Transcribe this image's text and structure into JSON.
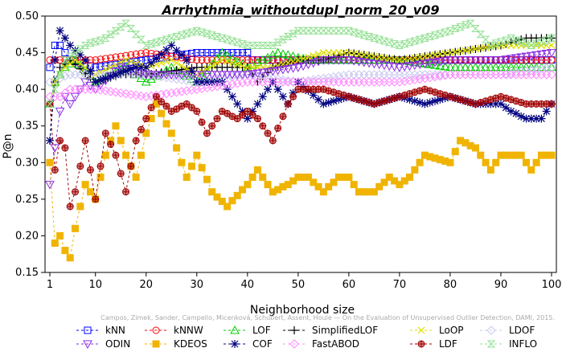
{
  "chart_data": {
    "type": "line",
    "title": "Arrhythmia_withoutdupl_norm_20_v09",
    "xlabel": "Neighborhood size",
    "ylabel": "P@n",
    "xlim": [
      1,
      100
    ],
    "ylim": [
      0.15,
      0.5
    ],
    "x_ticks": [
      1,
      10,
      20,
      30,
      40,
      50,
      60,
      70,
      80,
      90,
      100
    ],
    "y_ticks": [
      0.15,
      0.2,
      0.25,
      0.3,
      0.35,
      0.4,
      0.45,
      0.5
    ],
    "grid": false,
    "legend_placement": "bottom",
    "watermark": "Campos, Zimek, Sander, Campello, Micenková, Schubert, Assent, Houle — On the Evaluation of Unsupervised Outlier Detection, DAMI, 2015.",
    "series": [
      {
        "name": "kNN",
        "color": "#0000ff",
        "marker": "square",
        "keypoints": [
          [
            1,
            0.43
          ],
          [
            2,
            0.46
          ],
          [
            3,
            0.46
          ],
          [
            5,
            0.44
          ],
          [
            10,
            0.43
          ],
          [
            20,
            0.44
          ],
          [
            30,
            0.45
          ],
          [
            40,
            0.45
          ],
          [
            41,
            0.44
          ],
          [
            60,
            0.44
          ],
          [
            80,
            0.44
          ],
          [
            90,
            0.44
          ],
          [
            100,
            0.44
          ]
        ]
      },
      {
        "name": "kNNW",
        "color": "#ff0000",
        "marker": "circle",
        "keypoints": [
          [
            1,
            0.44
          ],
          [
            3,
            0.44
          ],
          [
            10,
            0.44
          ],
          [
            20,
            0.45
          ],
          [
            30,
            0.44
          ],
          [
            40,
            0.44
          ],
          [
            60,
            0.44
          ],
          [
            80,
            0.44
          ],
          [
            100,
            0.44
          ]
        ]
      },
      {
        "name": "LOF",
        "color": "#00cc00",
        "marker": "triangle-up",
        "keypoints": [
          [
            1,
            0.38
          ],
          [
            2,
            0.41
          ],
          [
            4,
            0.43
          ],
          [
            6,
            0.44
          ],
          [
            10,
            0.41
          ],
          [
            16,
            0.43
          ],
          [
            20,
            0.41
          ],
          [
            25,
            0.43
          ],
          [
            30,
            0.41
          ],
          [
            35,
            0.45
          ],
          [
            40,
            0.43
          ],
          [
            46,
            0.45
          ],
          [
            52,
            0.44
          ],
          [
            60,
            0.44
          ],
          [
            70,
            0.44
          ],
          [
            80,
            0.43
          ],
          [
            90,
            0.43
          ],
          [
            100,
            0.43
          ]
        ]
      },
      {
        "name": "SimplifiedLOF",
        "color": "#000000",
        "marker": "plus",
        "keypoints": [
          [
            1,
            0.33
          ],
          [
            2,
            0.41
          ],
          [
            3,
            0.43
          ],
          [
            5,
            0.44
          ],
          [
            10,
            0.41
          ],
          [
            15,
            0.42
          ],
          [
            20,
            0.42
          ],
          [
            30,
            0.43
          ],
          [
            40,
            0.43
          ],
          [
            42,
            0.41
          ],
          [
            45,
            0.43
          ],
          [
            50,
            0.44
          ],
          [
            55,
            0.44
          ],
          [
            60,
            0.45
          ],
          [
            70,
            0.44
          ],
          [
            80,
            0.45
          ],
          [
            90,
            0.46
          ],
          [
            95,
            0.47
          ],
          [
            100,
            0.47
          ]
        ]
      },
      {
        "name": "LoOP",
        "color": "#dddd00",
        "marker": "x",
        "keypoints": [
          [
            1,
            0.38
          ],
          [
            2,
            0.41
          ],
          [
            4,
            0.43
          ],
          [
            6,
            0.44
          ],
          [
            10,
            0.42
          ],
          [
            16,
            0.44
          ],
          [
            20,
            0.43
          ],
          [
            25,
            0.44
          ],
          [
            30,
            0.42
          ],
          [
            35,
            0.44
          ],
          [
            40,
            0.43
          ],
          [
            45,
            0.43
          ],
          [
            50,
            0.44
          ],
          [
            55,
            0.45
          ],
          [
            60,
            0.45
          ],
          [
            70,
            0.44
          ],
          [
            80,
            0.45
          ],
          [
            90,
            0.46
          ],
          [
            100,
            0.46
          ]
        ]
      },
      {
        "name": "LDOF",
        "color": "#c8c8f0",
        "marker": "diamond",
        "keypoints": [
          [
            1,
            0.41
          ],
          [
            5,
            0.42
          ],
          [
            10,
            0.42
          ],
          [
            20,
            0.42
          ],
          [
            30,
            0.41
          ],
          [
            40,
            0.42
          ],
          [
            50,
            0.41
          ],
          [
            60,
            0.42
          ],
          [
            70,
            0.42
          ],
          [
            80,
            0.42
          ],
          [
            90,
            0.42
          ],
          [
            100,
            0.43
          ]
        ]
      },
      {
        "name": "ODIN",
        "color": "#8a2be2",
        "marker": "triangle-down",
        "keypoints": [
          [
            1,
            0.27
          ],
          [
            2,
            0.32
          ],
          [
            3,
            0.37
          ],
          [
            4,
            0.39
          ],
          [
            5,
            0.38
          ],
          [
            8,
            0.41
          ],
          [
            10,
            0.4
          ],
          [
            15,
            0.43
          ],
          [
            20,
            0.42
          ],
          [
            30,
            0.42
          ],
          [
            40,
            0.42
          ],
          [
            50,
            0.43
          ],
          [
            55,
            0.44
          ],
          [
            60,
            0.44
          ],
          [
            70,
            0.43
          ],
          [
            80,
            0.44
          ],
          [
            90,
            0.44
          ],
          [
            100,
            0.45
          ]
        ]
      },
      {
        "name": "KDEOS",
        "color": "#f0b400",
        "marker": "square-filled",
        "keypoints": [
          [
            1,
            0.3
          ],
          [
            2,
            0.19
          ],
          [
            3,
            0.2
          ],
          [
            4,
            0.18
          ],
          [
            5,
            0.17
          ],
          [
            6,
            0.21
          ],
          [
            8,
            0.27
          ],
          [
            10,
            0.25
          ],
          [
            12,
            0.31
          ],
          [
            14,
            0.35
          ],
          [
            16,
            0.31
          ],
          [
            18,
            0.28
          ],
          [
            20,
            0.34
          ],
          [
            22,
            0.38
          ],
          [
            25,
            0.34
          ],
          [
            28,
            0.28
          ],
          [
            30,
            0.31
          ],
          [
            33,
            0.26
          ],
          [
            36,
            0.24
          ],
          [
            40,
            0.27
          ],
          [
            42,
            0.29
          ],
          [
            45,
            0.26
          ],
          [
            48,
            0.27
          ],
          [
            50,
            0.28
          ],
          [
            52,
            0.28
          ],
          [
            55,
            0.26
          ],
          [
            58,
            0.28
          ],
          [
            60,
            0.28
          ],
          [
            62,
            0.26
          ],
          [
            65,
            0.26
          ],
          [
            68,
            0.28
          ],
          [
            70,
            0.27
          ],
          [
            72,
            0.28
          ],
          [
            75,
            0.31
          ],
          [
            80,
            0.3
          ],
          [
            82,
            0.33
          ],
          [
            85,
            0.32
          ],
          [
            88,
            0.29
          ],
          [
            90,
            0.31
          ],
          [
            94,
            0.31
          ],
          [
            96,
            0.29
          ],
          [
            98,
            0.31
          ],
          [
            100,
            0.31
          ]
        ]
      },
      {
        "name": "COF",
        "color": "#000080",
        "marker": "asterisk",
        "keypoints": [
          [
            1,
            0.33
          ],
          [
            2,
            0.44
          ],
          [
            3,
            0.48
          ],
          [
            5,
            0.46
          ],
          [
            8,
            0.44
          ],
          [
            10,
            0.41
          ],
          [
            14,
            0.42
          ],
          [
            18,
            0.43
          ],
          [
            20,
            0.43
          ],
          [
            25,
            0.46
          ],
          [
            28,
            0.44
          ],
          [
            30,
            0.41
          ],
          [
            35,
            0.41
          ],
          [
            38,
            0.38
          ],
          [
            40,
            0.36
          ],
          [
            42,
            0.38
          ],
          [
            45,
            0.41
          ],
          [
            48,
            0.38
          ],
          [
            50,
            0.41
          ],
          [
            55,
            0.38
          ],
          [
            60,
            0.39
          ],
          [
            65,
            0.38
          ],
          [
            70,
            0.39
          ],
          [
            75,
            0.38
          ],
          [
            80,
            0.39
          ],
          [
            85,
            0.38
          ],
          [
            88,
            0.38
          ],
          [
            90,
            0.38
          ],
          [
            92,
            0.37
          ],
          [
            95,
            0.36
          ],
          [
            98,
            0.36
          ],
          [
            100,
            0.38
          ]
        ]
      },
      {
        "name": "FastABOD",
        "color": "#ff88ff",
        "marker": "diamond",
        "keypoints": [
          [
            1,
            0.39
          ],
          [
            3,
            0.39
          ],
          [
            5,
            0.4
          ],
          [
            10,
            0.4
          ],
          [
            20,
            0.39
          ],
          [
            30,
            0.4
          ],
          [
            40,
            0.41
          ],
          [
            50,
            0.41
          ],
          [
            60,
            0.41
          ],
          [
            70,
            0.41
          ],
          [
            80,
            0.42
          ],
          [
            90,
            0.42
          ],
          [
            100,
            0.42
          ]
        ]
      },
      {
        "name": "LDF",
        "color": "#a00000",
        "marker": "circle-plus",
        "keypoints": [
          [
            1,
            0.38
          ],
          [
            2,
            0.29
          ],
          [
            3,
            0.33
          ],
          [
            4,
            0.32
          ],
          [
            5,
            0.24
          ],
          [
            6,
            0.26
          ],
          [
            8,
            0.33
          ],
          [
            10,
            0.25
          ],
          [
            12,
            0.34
          ],
          [
            14,
            0.31
          ],
          [
            16,
            0.26
          ],
          [
            18,
            0.33
          ],
          [
            20,
            0.36
          ],
          [
            22,
            0.39
          ],
          [
            25,
            0.37
          ],
          [
            28,
            0.38
          ],
          [
            30,
            0.37
          ],
          [
            32,
            0.34
          ],
          [
            35,
            0.37
          ],
          [
            38,
            0.36
          ],
          [
            40,
            0.37
          ],
          [
            42,
            0.36
          ],
          [
            45,
            0.33
          ],
          [
            48,
            0.38
          ],
          [
            50,
            0.4
          ],
          [
            55,
            0.4
          ],
          [
            60,
            0.39
          ],
          [
            65,
            0.38
          ],
          [
            70,
            0.39
          ],
          [
            75,
            0.4
          ],
          [
            80,
            0.39
          ],
          [
            85,
            0.38
          ],
          [
            90,
            0.39
          ],
          [
            95,
            0.38
          ],
          [
            100,
            0.38
          ]
        ]
      },
      {
        "name": "INFLO",
        "color": "#90e090",
        "marker": "hourglass",
        "keypoints": [
          [
            1,
            0.38
          ],
          [
            4,
            0.44
          ],
          [
            8,
            0.46
          ],
          [
            12,
            0.47
          ],
          [
            16,
            0.49
          ],
          [
            20,
            0.46
          ],
          [
            25,
            0.47
          ],
          [
            30,
            0.48
          ],
          [
            35,
            0.47
          ],
          [
            40,
            0.46
          ],
          [
            45,
            0.46
          ],
          [
            50,
            0.48
          ],
          [
            55,
            0.48
          ],
          [
            60,
            0.48
          ],
          [
            65,
            0.47
          ],
          [
            70,
            0.46
          ],
          [
            75,
            0.47
          ],
          [
            80,
            0.48
          ],
          [
            84,
            0.49
          ],
          [
            88,
            0.46
          ],
          [
            92,
            0.47
          ],
          [
            96,
            0.46
          ],
          [
            100,
            0.47
          ]
        ]
      }
    ]
  }
}
